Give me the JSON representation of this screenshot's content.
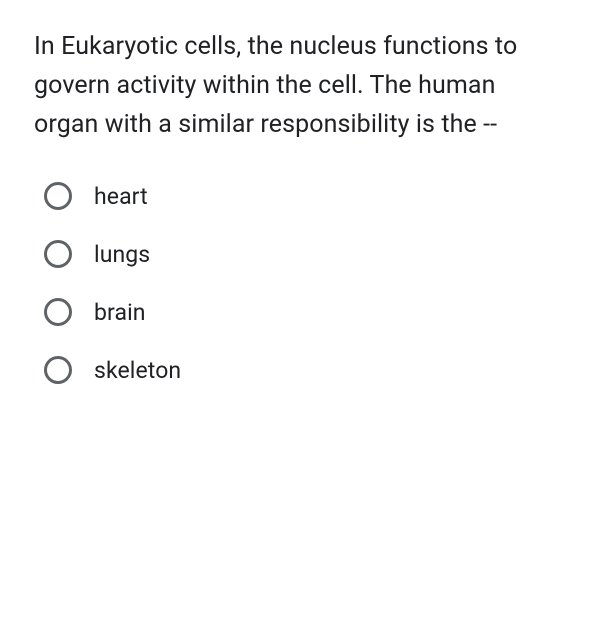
{
  "question": {
    "text": "In Eukaryotic cells, the nucleus functions to govern activity within the cell. The human organ with a similar responsibility is the --",
    "text_color": "#202124",
    "font_size": 25
  },
  "options": [
    {
      "label": "heart",
      "selected": false
    },
    {
      "label": "lungs",
      "selected": false
    },
    {
      "label": "brain",
      "selected": false
    },
    {
      "label": "skeleton",
      "selected": false
    }
  ],
  "radio_style": {
    "border_color": "#5f6368",
    "border_width": 3,
    "size": 28
  },
  "background_color": "#ffffff"
}
